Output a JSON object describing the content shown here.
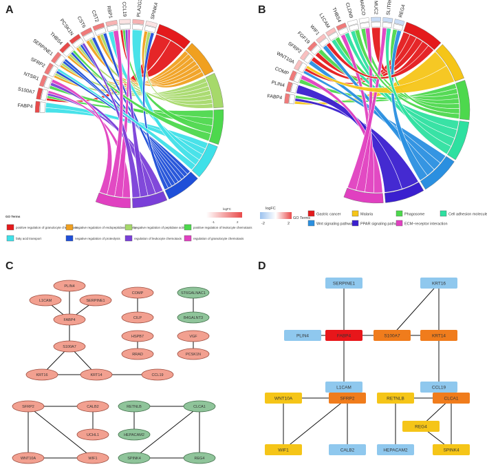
{
  "panels": {
    "a": "A",
    "b": "B",
    "c": "C",
    "d": "D"
  },
  "panel_a": {
    "genes": [
      "FABP4",
      "S100A7",
      "NTSR1",
      "SFRP2",
      "SERPINE1",
      "THBS4",
      "PCSK1N",
      "CST6",
      "CST2",
      "RBP1",
      "CCL19",
      "PLA2G3",
      "SPINK4"
    ],
    "go_title": "GO Terms",
    "logfc_title": "logFC",
    "logfc_min": "-1",
    "logfc_max": "2",
    "terms": [
      {
        "label": "positive regulation of granulocyte chemotaxis",
        "color": "#e41a1c"
      },
      {
        "label": "negative regulation of endopeptidase activity",
        "color": "#f0a020"
      },
      {
        "label": "negative regulation of peptidase activity",
        "color": "#a6d96a"
      },
      {
        "label": "positive regulation of leukocyte chemotaxis",
        "color": "#4dd84d"
      },
      {
        "label": "fatty acid transport",
        "color": "#3fe0e8"
      },
      {
        "label": "negative regulation of proteolysis",
        "color": "#1f4fd8"
      },
      {
        "label": "regulation of leukocyte chemotaxis",
        "color": "#7a3fd8"
      },
      {
        "label": "regulation of granulocyte chemotaxis",
        "color": "#e040c0"
      }
    ]
  },
  "panel_b": {
    "genes": [
      "FABP4",
      "PLIN4",
      "COMP",
      "WNT10A",
      "SFRP2",
      "FGF19",
      "WIF1",
      "L1CAM",
      "THBS4",
      "CLDN9",
      "MARCO",
      "MUC2",
      "SLITRK6",
      "REG4"
    ],
    "go_title": "GO Terms",
    "logfc_title": "logFC",
    "logfc_min": "-2",
    "logfc_max": "2",
    "terms": [
      {
        "label": "Gastric cancer",
        "color": "#e41a1c"
      },
      {
        "label": "Malaria",
        "color": "#f5c518"
      },
      {
        "label": "Phagosome",
        "color": "#4dd84d"
      },
      {
        "label": "Cell adhesion molecules",
        "color": "#2ee0a0"
      },
      {
        "label": "Wnt signaling pathway",
        "color": "#2a8fe0"
      },
      {
        "label": "PPAR signaling pathway",
        "color": "#3a1fcf"
      },
      {
        "label": "ECM−receptor interaction",
        "color": "#e040c0"
      }
    ]
  },
  "panel_c": {
    "nodes": [
      {
        "id": "PLIN4",
        "label": "PLIN4",
        "group": "up"
      },
      {
        "id": "L1CAM",
        "label": "L1CAM",
        "group": "up"
      },
      {
        "id": "SERPINE1",
        "label": "SERPINE1",
        "group": "up"
      },
      {
        "id": "FABP4",
        "label": "FABP4",
        "group": "up"
      },
      {
        "id": "S100A7",
        "label": "S100A7",
        "group": "up"
      },
      {
        "id": "KRT16",
        "label": "KRT16",
        "group": "up"
      },
      {
        "id": "KRT14",
        "label": "KRT14",
        "group": "up"
      },
      {
        "id": "CCL19",
        "label": "CCL19",
        "group": "up"
      },
      {
        "id": "COMP",
        "label": "COMP",
        "group": "up"
      },
      {
        "id": "CILP",
        "label": "CILP",
        "group": "up"
      },
      {
        "id": "HSPB7",
        "label": "HSPB7",
        "group": "up"
      },
      {
        "id": "RRAD",
        "label": "RRAD",
        "group": "up"
      },
      {
        "id": "ST6GALNAC1",
        "label": "ST6GALNAC1",
        "group": "down"
      },
      {
        "id": "B4GALNT3",
        "label": "B4GALNT3",
        "group": "down"
      },
      {
        "id": "VGF",
        "label": "VGF",
        "group": "up"
      },
      {
        "id": "PCSK1N",
        "label": "PCSK1N",
        "group": "up"
      },
      {
        "id": "SFRP2",
        "label": "SFRP2",
        "group": "up"
      },
      {
        "id": "CALB2",
        "label": "CALB2",
        "group": "up"
      },
      {
        "id": "UCHL1",
        "label": "UCHL1",
        "group": "up"
      },
      {
        "id": "WNT10A",
        "label": "WNT10A",
        "group": "up"
      },
      {
        "id": "WIF1",
        "label": "WIF1",
        "group": "up"
      },
      {
        "id": "RETNLB",
        "label": "RETNLB",
        "group": "down"
      },
      {
        "id": "CLCA1",
        "label": "CLCA1",
        "group": "down"
      },
      {
        "id": "HEPACAM2",
        "label": "HEPACAM2",
        "group": "down"
      },
      {
        "id": "SPINK4",
        "label": "SPINK4",
        "group": "down"
      },
      {
        "id": "REG4",
        "label": "REG4",
        "group": "down"
      }
    ],
    "edges": [
      [
        "PLIN4",
        "FABP4"
      ],
      [
        "L1CAM",
        "FABP4"
      ],
      [
        "SERPINE1",
        "FABP4"
      ],
      [
        "FABP4",
        "S100A7"
      ],
      [
        "S100A7",
        "KRT16"
      ],
      [
        "S100A7",
        "KRT14"
      ],
      [
        "KRT16",
        "KRT14"
      ],
      [
        "KRT14",
        "CCL19"
      ],
      [
        "COMP",
        "CILP"
      ],
      [
        "HSPB7",
        "RRAD"
      ],
      [
        "ST6GALNAC1",
        "B4GALNT3"
      ],
      [
        "VGF",
        "PCSK1N"
      ],
      [
        "SFRP2",
        "CALB2"
      ],
      [
        "SFRP2",
        "WIF1"
      ],
      [
        "SFRP2",
        "WNT10A"
      ],
      [
        "WNT10A",
        "WIF1"
      ],
      [
        "CALB2",
        "UCHL1"
      ],
      [
        "RETNLB",
        "CLCA1"
      ],
      [
        "RETNLB",
        "HEPACAM2"
      ],
      [
        "CLCA1",
        "SPINK4"
      ],
      [
        "CLCA1",
        "REG4"
      ],
      [
        "SPINK4",
        "REG4"
      ]
    ]
  },
  "panel_d": {
    "nodes": [
      {
        "id": "SERPINE1",
        "label": "SERPINE1",
        "color": "#8fc8ee"
      },
      {
        "id": "KRT16",
        "label": "KRT16",
        "color": "#8fc8ee"
      },
      {
        "id": "PLIN4",
        "label": "PLIN4",
        "color": "#8fc8ee"
      },
      {
        "id": "FABP4",
        "label": "FABP4",
        "color": "#e8161a"
      },
      {
        "id": "S100A7",
        "label": "S100A7",
        "color": "#f07c1c"
      },
      {
        "id": "KRT14",
        "label": "KRT14",
        "color": "#f07c1c"
      },
      {
        "id": "L1CAM",
        "label": "L1CAM",
        "color": "#8fc8ee"
      },
      {
        "id": "CCL19",
        "label": "CCL19",
        "color": "#8fc8ee"
      },
      {
        "id": "WNT10A",
        "label": "WNT10A",
        "color": "#f5c518"
      },
      {
        "id": "SFRP2",
        "label": "SFRP2",
        "color": "#f07c1c"
      },
      {
        "id": "WIF1",
        "label": "WIF1",
        "color": "#f5c518"
      },
      {
        "id": "CALB2",
        "label": "CALB2",
        "color": "#8fc8ee"
      },
      {
        "id": "RETNLB",
        "label": "RETNLB",
        "color": "#f5c518"
      },
      {
        "id": "CLCA1",
        "label": "CLCA1",
        "color": "#f07c1c"
      },
      {
        "id": "REG4",
        "label": "REG4",
        "color": "#f5c518"
      },
      {
        "id": "HEPACAM2",
        "label": "HEPACAM2",
        "color": "#8fc8ee"
      },
      {
        "id": "SPINK4",
        "label": "SPINK4",
        "color": "#f5c518"
      }
    ],
    "edges": [
      [
        "SERPINE1",
        "FABP4"
      ],
      [
        "PLIN4",
        "FABP4"
      ],
      [
        "FABP4",
        "S100A7"
      ],
      [
        "FABP4",
        "L1CAM"
      ],
      [
        "S100A7",
        "KRT16"
      ],
      [
        "S100A7",
        "KRT14"
      ],
      [
        "KRT16",
        "KRT14"
      ],
      [
        "KRT14",
        "CCL19"
      ],
      [
        "WNT10A",
        "SFRP2"
      ],
      [
        "WNT10A",
        "WIF1"
      ],
      [
        "SFRP2",
        "WIF1"
      ],
      [
        "SFRP2",
        "CALB2"
      ],
      [
        "RETNLB",
        "CLCA1"
      ],
      [
        "RETNLB",
        "HEPACAM2"
      ],
      [
        "CLCA1",
        "REG4"
      ],
      [
        "CLCA1",
        "SPINK4"
      ],
      [
        "REG4",
        "SPINK4"
      ]
    ]
  }
}
